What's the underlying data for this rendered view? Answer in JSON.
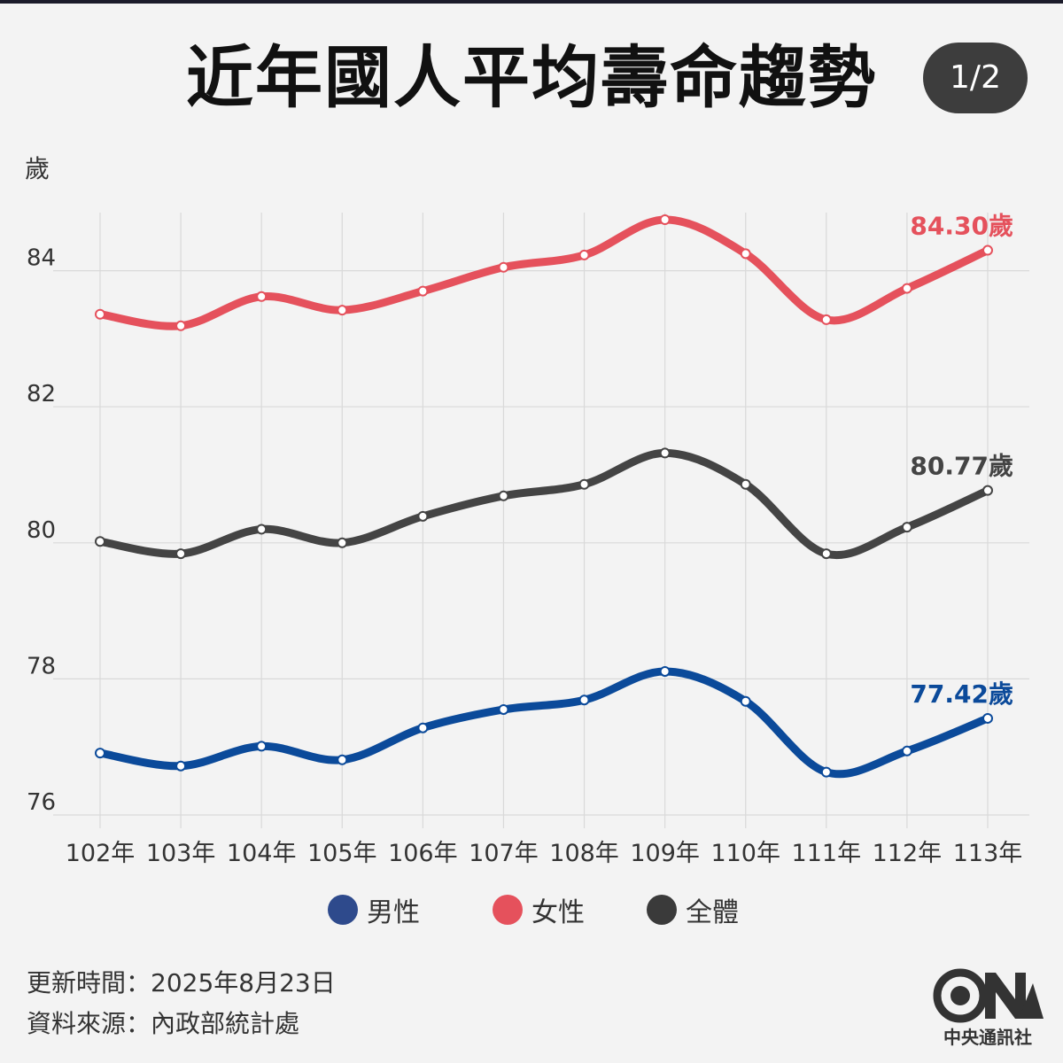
{
  "header": {
    "title": "近年國人平均壽命趨勢",
    "page_indicator": "1/2"
  },
  "chart_data": {
    "type": "line",
    "ylabel": "歲",
    "ylim": [
      76,
      85.2
    ],
    "yticks": [
      76,
      78,
      80,
      82,
      84
    ],
    "categories": [
      "102年",
      "103年",
      "104年",
      "105年",
      "106年",
      "107年",
      "108年",
      "109年",
      "110年",
      "111年",
      "112年",
      "113年"
    ],
    "grid": true,
    "legend_position": "bottom",
    "series": [
      {
        "name": "男性",
        "color": "#0b4a9a",
        "legend_color": "#2e4a8c",
        "values": [
          76.91,
          76.72,
          77.01,
          76.81,
          77.28,
          77.55,
          77.69,
          78.11,
          77.67,
          76.63,
          76.94,
          77.42
        ],
        "end_label": "77.42歲"
      },
      {
        "name": "女性",
        "color": "#e5515c",
        "legend_color": "#e5515c",
        "values": [
          83.36,
          83.19,
          83.62,
          83.42,
          83.7,
          84.05,
          84.23,
          84.75,
          84.25,
          83.28,
          83.74,
          84.3
        ],
        "end_label": "84.30歲"
      },
      {
        "name": "全體",
        "color": "#444444",
        "legend_color": "#3a3a3a",
        "values": [
          80.02,
          79.84,
          80.2,
          80.0,
          80.39,
          80.69,
          80.86,
          81.32,
          80.86,
          79.84,
          80.23,
          80.77
        ],
        "end_label": "80.77歲"
      }
    ]
  },
  "legend": {
    "items": [
      {
        "label": "男性",
        "color": "#2e4a8c"
      },
      {
        "label": "女性",
        "color": "#e5515c"
      },
      {
        "label": "全體",
        "color": "#3a3a3a"
      }
    ]
  },
  "footer": {
    "updated": "更新時間：2025年8月23日",
    "source": "資料來源：內政部統計處"
  },
  "logo": {
    "caption": "中央通訊社",
    "icon": "cna-logo"
  }
}
